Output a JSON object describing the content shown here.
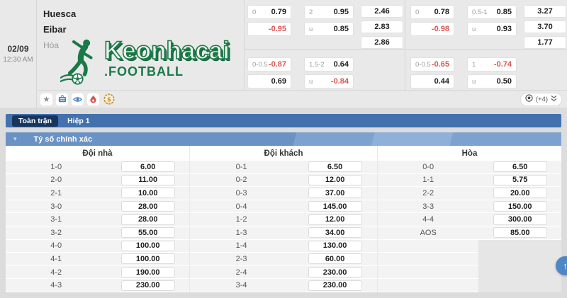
{
  "match": {
    "date": "02/09",
    "time": "12:30 AM",
    "home_team": "Huesca",
    "away_team": "Eibar",
    "draw_label": "Hòa",
    "logo_title": "Keonhacai",
    "logo_subtitle": ".FOOTBALL"
  },
  "top_odds": {
    "full_time": {
      "left": {
        "handicap": [
          {
            "label": "0",
            "value": "0.79",
            "red": false
          },
          {
            "label": "",
            "value": "-0.95",
            "red": true
          }
        ],
        "over_under": [
          {
            "label": "2",
            "value": "0.95",
            "red": false
          },
          {
            "label": "u",
            "value": "0.85",
            "red": false
          }
        ],
        "x12": [
          "2.46",
          "2.83",
          "2.86"
        ]
      },
      "right": {
        "handicap": [
          {
            "label": "0",
            "value": "0.78",
            "red": false
          },
          {
            "label": "",
            "value": "-0.98",
            "red": true
          }
        ],
        "over_under": [
          {
            "label": "0.5-1",
            "value": "0.85",
            "red": false
          },
          {
            "label": "u",
            "value": "0.93",
            "red": false
          }
        ],
        "x12": [
          "3.27",
          "3.70",
          "1.77"
        ]
      }
    },
    "first_half": {
      "left": {
        "handicap": [
          {
            "label": "0-0.5",
            "value": "-0.87",
            "red": true
          },
          {
            "label": "",
            "value": "0.69",
            "red": false
          }
        ],
        "over_under": [
          {
            "label": "1.5-2",
            "value": "0.64",
            "red": false
          },
          {
            "label": "u",
            "value": "-0.84",
            "red": true
          }
        ]
      },
      "right": {
        "handicap": [
          {
            "label": "0-0.5",
            "value": "-0.65",
            "red": true
          },
          {
            "label": "",
            "value": "0.44",
            "red": false
          }
        ],
        "over_under": [
          {
            "label": "1",
            "value": "-0.74",
            "red": true
          },
          {
            "label": "u",
            "value": "0.50",
            "red": false
          }
        ]
      }
    },
    "more_label": "(+4)"
  },
  "icons": [
    "star-icon",
    "tv-icon",
    "eye-icon",
    "fire-icon",
    "coin-icon",
    "soccer-ball-icon",
    "double-chevron-down-icon",
    "arrow-up-icon",
    "chevron-down-icon"
  ],
  "tabs": [
    {
      "label": "Toàn trận",
      "active": true
    },
    {
      "label": "Hiệp 1",
      "active": false
    }
  ],
  "section": {
    "title": "Tỷ số chính xác"
  },
  "score_table": {
    "headers": [
      "Đội nhà",
      "Đội khách",
      "Hòa"
    ],
    "home": [
      [
        "1-0",
        "6.00"
      ],
      [
        "2-0",
        "11.00"
      ],
      [
        "2-1",
        "10.00"
      ],
      [
        "3-0",
        "28.00"
      ],
      [
        "3-1",
        "28.00"
      ],
      [
        "3-2",
        "55.00"
      ],
      [
        "4-0",
        "100.00"
      ],
      [
        "4-1",
        "100.00"
      ],
      [
        "4-2",
        "190.00"
      ],
      [
        "4-3",
        "230.00"
      ]
    ],
    "away": [
      [
        "0-1",
        "6.50"
      ],
      [
        "0-2",
        "12.00"
      ],
      [
        "0-3",
        "37.00"
      ],
      [
        "0-4",
        "145.00"
      ],
      [
        "1-2",
        "12.00"
      ],
      [
        "1-3",
        "34.00"
      ],
      [
        "1-4",
        "130.00"
      ],
      [
        "2-3",
        "60.00"
      ],
      [
        "2-4",
        "230.00"
      ],
      [
        "3-4",
        "230.00"
      ]
    ],
    "draw": [
      [
        "0-0",
        "6.50"
      ],
      [
        "1-1",
        "5.75"
      ],
      [
        "2-2",
        "20.00"
      ],
      [
        "3-3",
        "150.00"
      ],
      [
        "4-4",
        "300.00"
      ],
      [
        "AOS",
        "85.00"
      ]
    ]
  },
  "colors": {
    "brand_green": "#1a7a47",
    "tab_bar_blue": "#4271ae",
    "active_tab_navy": "#16365f",
    "section_bar_blue": "#6b92c5",
    "negative_odds_red": "#e0524c",
    "card_bg": "#e9e9e9"
  }
}
